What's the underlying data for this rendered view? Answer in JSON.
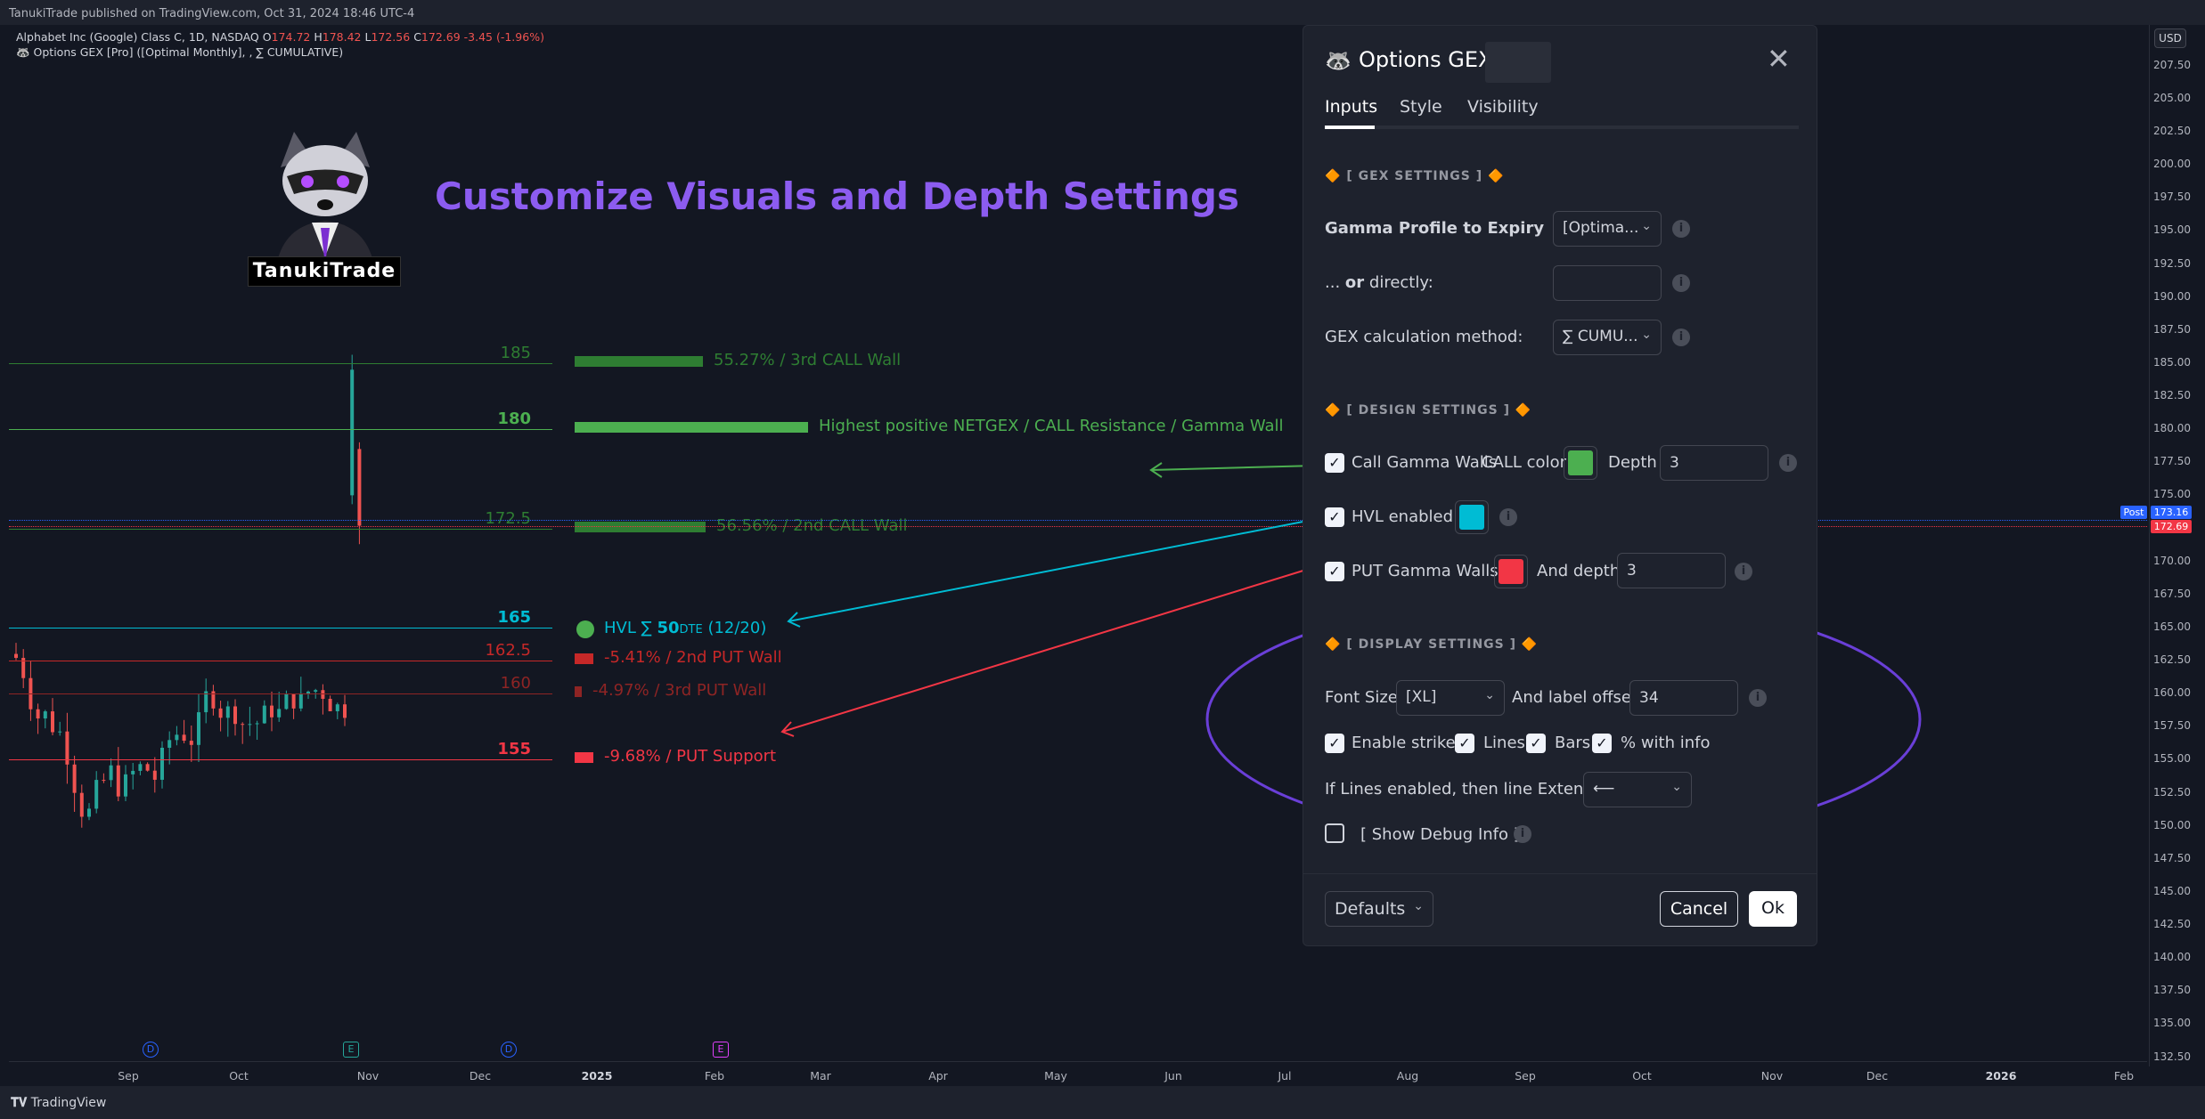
{
  "top_bar": {
    "text": "TanukiTrade published on TradingView.com, Oct 31, 2024 18:46 UTC-4"
  },
  "symbol_header": {
    "name": "Alphabet Inc (Google) Class C, 1D, NASDAQ",
    "ohlc": {
      "o_label": "O",
      "o": "174.72",
      "h_label": "H",
      "h": "178.42",
      "l_label": "L",
      "l": "172.56",
      "c_label": "C",
      "c": "172.69",
      "change": "-3.45 (-1.96%)"
    },
    "indicator": "🦝 Options GEX [Pro] ([Optimal Monthly], , ∑ CUMULATIVE)"
  },
  "promo": {
    "title": "Customize Visuals and Depth Settings",
    "brand": "TanukiTrade"
  },
  "levels": [
    {
      "price": "185",
      "text": "55.27% / 3rd CALL Wall",
      "color": "#2e7d32",
      "bold": false,
      "bar_pct": 0.55
    },
    {
      "price": "180",
      "text": "Highest positive NETGEX / CALL Resistance / Gamma Wall",
      "color": "#4caf50",
      "bold": true,
      "bar_pct": 1.0
    },
    {
      "price": "172.5",
      "text": "56.56% / 2nd CALL Wall",
      "color": "#2e7d32",
      "bold": false,
      "bar_pct": 0.56
    },
    {
      "price": "165",
      "hvl_label": "HVL ∑",
      "hvl_num": "50",
      "hvl_dte": "DTE",
      "hvl_date": "(12/20)",
      "color": "#00bcd4",
      "bold": true
    },
    {
      "price": "162.5",
      "text": "-5.41% / 2nd PUT Wall",
      "color": "#c62828",
      "bold": false,
      "bar_pct": 0.08
    },
    {
      "price": "160",
      "text": "-4.97% / 3rd PUT Wall",
      "color": "#8e2424",
      "bold": false,
      "bar_pct": 0.03
    },
    {
      "price": "155",
      "text": "-9.68% / PUT Support",
      "color": "#f23645",
      "bold": true,
      "bar_pct": 0.08
    }
  ],
  "price_axis": {
    "currency": "USD",
    "ticks": [
      "207.50",
      "205.00",
      "202.50",
      "200.00",
      "197.50",
      "195.00",
      "192.50",
      "190.00",
      "187.50",
      "185.00",
      "182.50",
      "180.00",
      "177.50",
      "175.00",
      "172.50",
      "170.00",
      "167.50",
      "165.00",
      "162.50",
      "160.00",
      "157.50",
      "155.00",
      "152.50",
      "150.00",
      "147.50",
      "145.00",
      "142.50",
      "140.00",
      "137.50",
      "135.00",
      "132.50"
    ],
    "post_label": "Post",
    "post_price": "173.16",
    "last_price": "172.69"
  },
  "time_axis": [
    "Sep",
    "Oct",
    "Nov",
    "Dec",
    "2025",
    "Feb",
    "Mar",
    "Apr",
    "May",
    "Jun",
    "Jul",
    "Aug",
    "Sep",
    "Oct",
    "Nov",
    "Dec",
    "2026",
    "Feb"
  ],
  "events": [
    "D",
    "E",
    "D",
    "E"
  ],
  "dialog": {
    "title": "Options GEX",
    "tabs": [
      "Inputs",
      "Style",
      "Visibility"
    ],
    "gex_section": "[ GEX SETTINGS ]",
    "gamma_profile_label": "Gamma Profile to Expiry",
    "gamma_profile_value": "[Optima...",
    "or_directly_prefix": "...",
    "or_directly_bold": "or",
    "or_directly_suffix": "directly:",
    "or_directly_value": "",
    "calc_method_label": "GEX calculation method:",
    "calc_method_value": "∑ CUMU...",
    "design_section": "[ DESIGN SETTINGS ]",
    "call_walls_label": "Call Gamma Walls",
    "call_color_label": "CALL color",
    "call_color": "#4caf50",
    "depth_label": "Depth",
    "depth_value": "3",
    "hvl_label": "HVL enabled",
    "hvl_color": "#00bcd4",
    "put_walls_label": "PUT Gamma Walls",
    "put_color": "#f23645",
    "and_depth_label": "And depth",
    "and_depth_value": "3",
    "display_section": "[ DISPLAY SETTINGS ]",
    "font_size_label": "Font Size",
    "font_size_value": "[XL]",
    "label_offset_label": "And label offset",
    "label_offset_value": "34",
    "strikes_label": "Enable strikes",
    "lines_label": "Lines",
    "bars_label": "Bars",
    "pct_label": "% with info",
    "line_ext_label": "If Lines enabled, then line Extension",
    "line_ext_value": "⟵",
    "debug_label": "[ Show Debug Info ]",
    "defaults_label": "Defaults",
    "cancel_label": "Cancel",
    "ok_label": "Ok"
  },
  "bottom_bar": {
    "logo": "TradingView"
  },
  "colors": {
    "call": "#4caf50",
    "hvl": "#00bcd4",
    "put": "#f23645",
    "accent": "#8c5cf0",
    "annotation": "#6a3fd8"
  }
}
